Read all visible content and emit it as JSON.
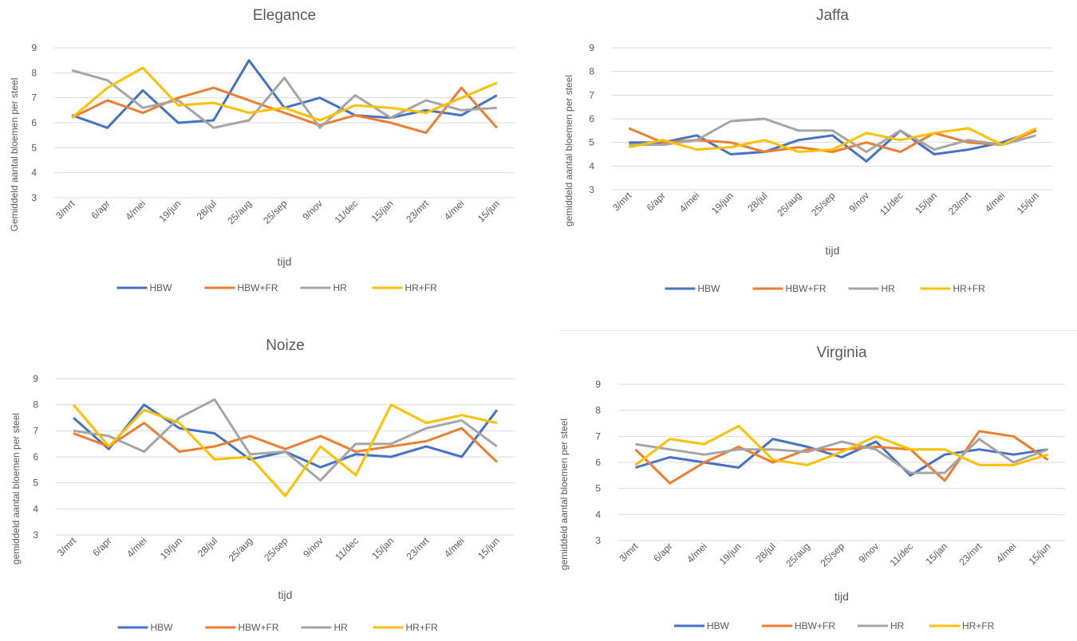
{
  "colors": {
    "HBW": "#4472c4",
    "HBW+FR": "#ed7d31",
    "HR": "#a5a5a5",
    "HR+FR": "#ffc000",
    "grid": "#d9d9d9",
    "text": "#595959"
  },
  "legend": [
    "HBW",
    "HBW+FR",
    "HR",
    "HR+FR"
  ],
  "chart_data": [
    {
      "type": "line",
      "title": "Elegance",
      "xlabel": "tijd",
      "ylabel": "Gemiddeld aantal bloemen per steel",
      "ylim": [
        3,
        9
      ],
      "yticks": [
        3,
        4,
        5,
        6,
        7,
        8,
        9
      ],
      "grid": true,
      "legend_position": "bottom",
      "categories": [
        "3/mrt",
        "6/apr",
        "4/mei",
        "19/jun",
        "28/jul",
        "25/aug",
        "25/sep",
        "9/nov",
        "11/dec",
        "15/jan",
        "23/mrt",
        "4/mei",
        "15/jun"
      ],
      "series": [
        {
          "name": "HBW",
          "values": [
            6.3,
            5.8,
            7.3,
            6.0,
            6.1,
            8.5,
            6.6,
            7.0,
            6.3,
            6.2,
            6.5,
            6.3,
            7.1
          ]
        },
        {
          "name": "HBW+FR",
          "values": [
            6.2,
            6.9,
            6.4,
            7.0,
            7.4,
            6.9,
            6.4,
            5.9,
            6.3,
            6.0,
            5.6,
            7.4,
            5.8
          ]
        },
        {
          "name": "HR",
          "values": [
            8.1,
            7.7,
            6.6,
            6.9,
            5.8,
            6.1,
            7.8,
            5.8,
            7.1,
            6.2,
            6.9,
            6.5,
            6.6
          ]
        },
        {
          "name": "HR+FR",
          "values": [
            6.2,
            7.4,
            8.2,
            6.7,
            6.8,
            6.4,
            6.6,
            6.1,
            6.7,
            6.6,
            6.4,
            7.0,
            7.6
          ]
        }
      ]
    },
    {
      "type": "line",
      "title": "Jaffa",
      "xlabel": "tijd",
      "ylabel": "gemiddeld aantal bloemen per steel",
      "ylim": [
        3,
        9
      ],
      "yticks": [
        3,
        4,
        5,
        6,
        7,
        8,
        9
      ],
      "grid": true,
      "legend_position": "bottom",
      "categories": [
        "3/mrt",
        "6/apr",
        "4/mei",
        "19/jun",
        "28/jul",
        "25/aug",
        "25/sep",
        "9/nov",
        "11/dec",
        "15/jan",
        "23/mrt",
        "4/mei",
        "15/jun"
      ],
      "series": [
        {
          "name": "HBW",
          "values": [
            5.0,
            5.0,
            5.3,
            4.5,
            4.6,
            5.1,
            5.3,
            4.2,
            5.5,
            4.5,
            4.7,
            5.0,
            5.5
          ]
        },
        {
          "name": "HBW+FR",
          "values": [
            5.6,
            5.0,
            5.1,
            5.0,
            4.6,
            4.8,
            4.6,
            5.0,
            4.6,
            5.4,
            5.0,
            4.9,
            5.5
          ]
        },
        {
          "name": "HR",
          "values": [
            4.9,
            4.9,
            5.1,
            5.9,
            6.0,
            5.5,
            5.5,
            4.6,
            5.5,
            4.7,
            5.1,
            4.9,
            5.3
          ]
        },
        {
          "name": "HR+FR",
          "values": [
            4.8,
            5.1,
            4.7,
            4.8,
            5.1,
            4.6,
            4.7,
            5.4,
            5.1,
            5.4,
            5.6,
            4.9,
            5.6
          ]
        }
      ]
    },
    {
      "type": "line",
      "title": "Noize",
      "xlabel": "tijd",
      "ylabel": "gemiddeld aantal bloemen per steel",
      "ylim": [
        3,
        9
      ],
      "yticks": [
        3,
        4,
        5,
        6,
        7,
        8,
        9
      ],
      "grid": true,
      "legend_position": "bottom",
      "categories": [
        "3/mrt",
        "6/apr",
        "4/mei",
        "19/jun",
        "28/jul",
        "25/aug",
        "25/sep",
        "9/nov",
        "11/dec",
        "15/jan",
        "23/mrt",
        "4/mei",
        "15/jun"
      ],
      "series": [
        {
          "name": "HBW",
          "values": [
            7.5,
            6.3,
            8.0,
            7.1,
            6.9,
            5.9,
            6.2,
            5.6,
            6.1,
            6.0,
            6.4,
            6.0,
            7.8
          ]
        },
        {
          "name": "HBW+FR",
          "values": [
            6.9,
            6.4,
            7.3,
            6.2,
            6.4,
            6.8,
            6.3,
            6.8,
            6.2,
            6.4,
            6.6,
            7.1,
            5.8
          ]
        },
        {
          "name": "HR",
          "values": [
            7.0,
            6.8,
            6.2,
            7.5,
            8.2,
            6.1,
            6.2,
            5.1,
            6.5,
            6.5,
            7.1,
            7.4,
            6.4
          ]
        },
        {
          "name": "HR+FR",
          "values": [
            8.0,
            6.4,
            7.8,
            7.3,
            5.9,
            6.0,
            4.5,
            6.4,
            5.3,
            8.0,
            7.3,
            7.6,
            7.3
          ]
        }
      ]
    },
    {
      "type": "line",
      "title": "Virginia",
      "xlabel": "tijd",
      "ylabel": "gemiddeld aantal bloemen per steel",
      "ylim": [
        3,
        9
      ],
      "yticks": [
        3,
        4,
        5,
        6,
        7,
        8,
        9
      ],
      "grid": true,
      "legend_position": "bottom",
      "categories": [
        "3/mrt",
        "6/apr",
        "4/mei",
        "19/jun",
        "28/jul",
        "25/aug",
        "25/sep",
        "9/nov",
        "11/dec",
        "15/jan",
        "23/mrt",
        "4/mei",
        "15/jun"
      ],
      "series": [
        {
          "name": "HBW",
          "values": [
            5.8,
            6.2,
            6.0,
            5.8,
            6.9,
            6.6,
            6.2,
            6.8,
            5.5,
            6.3,
            6.5,
            6.3,
            6.5
          ]
        },
        {
          "name": "HBW+FR",
          "values": [
            6.5,
            5.2,
            6.0,
            6.6,
            6.0,
            6.5,
            6.5,
            6.6,
            6.5,
            5.3,
            7.2,
            7.0,
            6.1
          ]
        },
        {
          "name": "HR",
          "values": [
            6.7,
            6.5,
            6.3,
            6.5,
            6.5,
            6.4,
            6.8,
            6.5,
            5.6,
            5.6,
            6.9,
            6.0,
            6.5
          ]
        },
        {
          "name": "HR+FR",
          "values": [
            5.9,
            6.9,
            6.7,
            7.4,
            6.1,
            5.9,
            6.4,
            7.0,
            6.5,
            6.5,
            5.9,
            5.9,
            6.3
          ]
        }
      ]
    }
  ]
}
